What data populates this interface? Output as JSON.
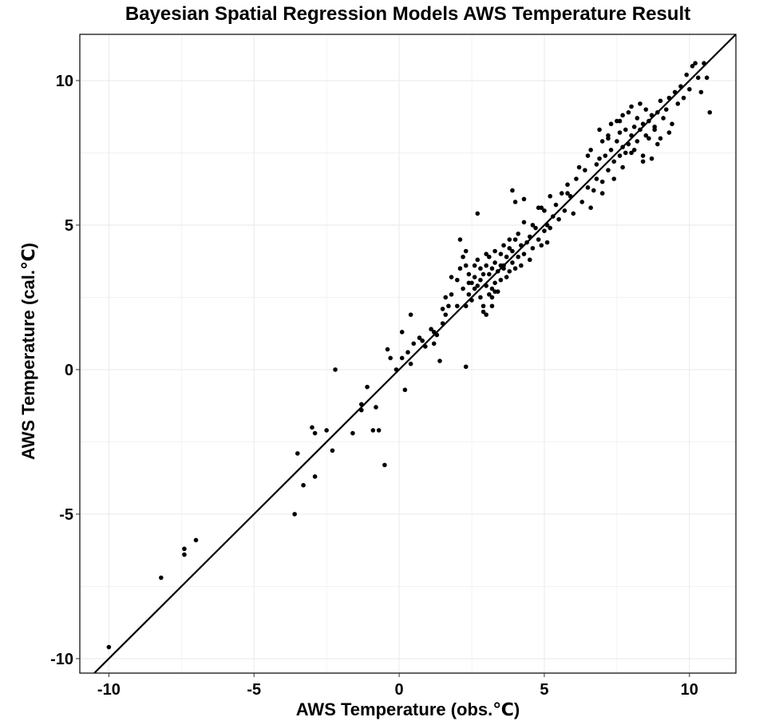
{
  "chart_data": {
    "type": "scatter",
    "title": "Bayesian Spatial Regression Models AWS Temperature Result",
    "xlabel": "AWS Temperature (obs.℃)",
    "ylabel": "AWS Temperature (cal.℃)",
    "xlim": [
      -11,
      11.6
    ],
    "ylim": [
      -10.5,
      11.6
    ],
    "x_ticks": [
      -10,
      -5,
      0,
      5,
      10
    ],
    "y_ticks": [
      -10,
      -5,
      0,
      5,
      10
    ],
    "x_tick_labels": [
      "-10",
      "-5",
      "0",
      "5",
      "10"
    ],
    "y_tick_labels": [
      "-10",
      "-5",
      "0",
      "5",
      "10"
    ],
    "grid": true,
    "reference_line": {
      "slope": 1,
      "intercept": 0
    },
    "point_color": "#000000",
    "line_color": "#000000",
    "grid_color": "#ebebeb",
    "series": [
      {
        "x": [
          -10.0,
          -8.2,
          -7.4,
          -7.4,
          -7.0,
          -3.6,
          -3.5,
          -3.3,
          -3.0,
          -2.9,
          -2.9,
          -2.5,
          -2.3,
          -2.2,
          -1.6,
          -1.3,
          -1.3,
          -1.1,
          -0.9,
          -0.8,
          -0.7,
          -0.5,
          -0.4,
          -0.3,
          -0.1,
          0.1,
          0.1,
          0.2,
          0.3,
          0.4,
          0.4,
          0.5,
          0.7,
          0.8,
          0.9,
          1.1,
          1.2,
          1.2,
          1.3,
          1.4,
          1.5,
          1.5,
          1.6,
          1.6,
          1.7,
          1.8,
          2.3
        ],
        "y": [
          -9.6,
          -7.2,
          -6.4,
          -6.2,
          -5.9,
          -5.0,
          -2.9,
          -4.0,
          -2.0,
          -3.7,
          -2.2,
          -2.1,
          -2.8,
          0.0,
          -2.2,
          -1.4,
          -1.2,
          -0.6,
          -2.1,
          -1.3,
          -2.1,
          -3.3,
          0.7,
          0.4,
          0.0,
          0.4,
          1.3,
          -0.7,
          0.6,
          1.9,
          0.2,
          0.9,
          1.1,
          1.0,
          0.8,
          1.4,
          0.9,
          1.3,
          1.2,
          0.3,
          1.6,
          2.1,
          1.9,
          2.5,
          2.2,
          3.2,
          0.1
        ]
      },
      {
        "x": [
          1.8,
          2.0,
          2.0,
          2.1,
          2.2,
          2.2,
          2.3,
          2.3,
          2.4,
          2.4,
          2.5,
          2.5,
          2.6,
          2.6,
          2.6,
          2.7,
          2.7,
          2.8,
          2.8,
          2.8,
          2.9,
          2.9,
          3.0,
          3.0,
          3.0,
          3.1,
          3.1,
          3.1,
          3.2,
          3.2,
          3.2,
          3.3,
          3.3,
          3.3,
          3.4,
          3.4,
          3.5,
          3.5,
          3.5,
          3.6,
          3.6,
          3.7,
          3.7,
          3.8,
          3.8,
          3.8,
          3.9,
          3.9,
          4.0,
          4.0,
          4.1,
          4.1,
          4.2,
          4.2,
          4.3,
          4.3,
          4.4,
          4.5,
          4.5,
          4.6,
          4.6,
          4.7,
          4.8,
          4.9,
          4.9,
          5.0,
          5.0,
          5.1,
          5.2,
          5.2,
          5.3,
          5.4,
          5.5,
          5.6,
          5.7,
          5.8,
          5.9,
          2.1,
          2.3,
          2.4,
          2.9,
          3.0,
          3.2,
          3.3,
          3.6,
          4.0,
          4.3,
          4.8,
          5.1,
          2.7,
          3.9
        ],
        "y": [
          2.6,
          2.2,
          3.1,
          3.5,
          2.8,
          3.9,
          2.2,
          3.6,
          3.3,
          2.6,
          3.0,
          2.4,
          3.6,
          2.8,
          3.2,
          2.9,
          3.8,
          3.5,
          2.5,
          3.1,
          3.3,
          2.2,
          2.9,
          3.6,
          4.0,
          2.6,
          3.3,
          3.9,
          2.8,
          3.5,
          2.2,
          3.0,
          3.7,
          4.1,
          3.4,
          2.7,
          3.6,
          4.0,
          3.1,
          3.5,
          4.3,
          3.2,
          3.9,
          3.4,
          4.2,
          4.5,
          3.7,
          4.1,
          3.5,
          4.5,
          3.9,
          4.7,
          3.6,
          4.3,
          4.0,
          5.1,
          4.4,
          3.8,
          4.6,
          4.2,
          5.0,
          4.9,
          4.5,
          4.3,
          5.6,
          4.8,
          5.5,
          4.4,
          4.9,
          6.0,
          5.3,
          5.7,
          5.2,
          6.1,
          5.5,
          6.4,
          6.0,
          4.5,
          4.1,
          3.0,
          2.0,
          1.9,
          2.5,
          2.7,
          3.6,
          5.8,
          5.9,
          5.6,
          5.0,
          5.4,
          6.2
        ]
      },
      {
        "x": [
          5.8,
          6.0,
          6.1,
          6.2,
          6.3,
          6.4,
          6.5,
          6.5,
          6.6,
          6.7,
          6.8,
          6.8,
          6.9,
          7.0,
          7.0,
          7.1,
          7.2,
          7.2,
          7.3,
          7.3,
          7.4,
          7.5,
          7.5,
          7.6,
          7.6,
          7.7,
          7.7,
          7.8,
          7.8,
          7.9,
          7.9,
          8.0,
          8.0,
          8.1,
          8.1,
          8.2,
          8.2,
          8.3,
          8.3,
          8.4,
          8.4,
          8.5,
          8.5,
          8.6,
          8.6,
          8.7,
          8.7,
          8.8,
          8.9,
          9.0,
          9.0,
          9.1,
          9.2,
          9.3,
          9.4,
          9.5,
          9.6,
          9.7,
          9.8,
          9.9,
          10.0,
          10.1,
          10.2,
          10.3,
          10.4,
          10.5,
          10.6,
          10.7,
          6.6,
          7.0,
          7.4,
          7.7,
          8.0,
          8.4,
          8.9,
          9.3,
          6.9,
          7.2,
          7.6,
          8.8
        ],
        "y": [
          6.1,
          5.4,
          6.6,
          7.0,
          5.8,
          6.9,
          7.4,
          6.3,
          7.6,
          6.2,
          7.1,
          6.6,
          7.3,
          7.9,
          6.5,
          7.4,
          8.1,
          6.9,
          7.6,
          8.5,
          7.2,
          7.9,
          8.6,
          7.4,
          8.2,
          7.7,
          8.8,
          7.5,
          8.3,
          7.8,
          8.9,
          8.1,
          9.1,
          7.6,
          8.4,
          8.7,
          7.9,
          8.3,
          9.2,
          8.5,
          7.4,
          8.1,
          9.0,
          8.6,
          8.0,
          8.8,
          7.3,
          8.4,
          8.9,
          9.3,
          8.0,
          8.7,
          9.0,
          9.4,
          8.5,
          9.6,
          9.2,
          9.8,
          9.4,
          10.2,
          9.7,
          10.5,
          10.6,
          10.1,
          9.6,
          10.6,
          10.1,
          8.9,
          5.6,
          6.1,
          6.6,
          7.0,
          7.5,
          7.2,
          7.8,
          8.2,
          8.3,
          8.0,
          8.6,
          8.3
        ]
      }
    ]
  }
}
